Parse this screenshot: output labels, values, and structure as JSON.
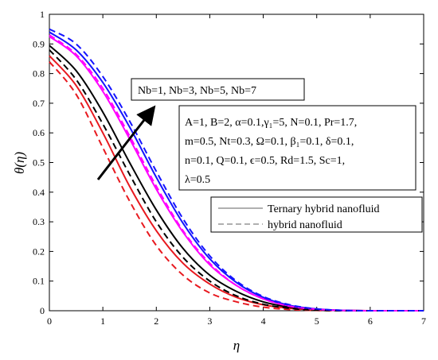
{
  "chart_data": {
    "type": "line",
    "xlabel": "η",
    "ylabel": "θ(η)",
    "xlim": [
      0,
      7
    ],
    "ylim": [
      0,
      1
    ],
    "xticks": [
      "0",
      "1",
      "2",
      "3",
      "4",
      "5",
      "6",
      "7"
    ],
    "yticks": [
      "0",
      "0.1",
      "0.2",
      "0.3",
      "0.4",
      "0.5",
      "0.6",
      "0.7",
      "0.8",
      "0.9",
      "1"
    ],
    "grid": false,
    "arrow_label": "Nb=1, Nb=3, Nb=5, Nb=7",
    "parameters": [
      "A=1, B=2, α=0.1,γ₁=5, N=0.1, Pr=1.7,",
      "m=0.5, Nt=0.3, Ω=0.1, β₁=0.1, δ=0.1,",
      "n=0.1, Q=0.1, ϵ=0.5, Rd=1.5, Sc=1,",
      "λ=0.5"
    ],
    "legend": {
      "placement": "middle-right",
      "entries": [
        {
          "label": "Ternary hybrid nanofluid",
          "style": "solid"
        },
        {
          "label": "hybrid nanofluid",
          "style": "dashed"
        }
      ]
    },
    "x": [
      0,
      0.5,
      1,
      1.5,
      2,
      2.5,
      3,
      3.5,
      4,
      4.5,
      5,
      5.5,
      6,
      6.5,
      7
    ],
    "series": [
      {
        "color": "#e8191f",
        "style": "solid",
        "values": [
          0.86,
          0.76,
          0.6,
          0.42,
          0.27,
          0.16,
          0.09,
          0.045,
          0.02,
          0.008,
          0.003,
          0.001,
          0,
          0,
          0
        ]
      },
      {
        "color": "#000000",
        "style": "solid",
        "values": [
          0.895,
          0.81,
          0.67,
          0.5,
          0.34,
          0.21,
          0.12,
          0.065,
          0.03,
          0.012,
          0.004,
          0.001,
          0,
          0,
          0
        ]
      },
      {
        "color": "#ff00ff",
        "style": "solid",
        "values": [
          0.925,
          0.86,
          0.74,
          0.58,
          0.41,
          0.265,
          0.155,
          0.085,
          0.04,
          0.016,
          0.005,
          0.001,
          0,
          0,
          0
        ]
      },
      {
        "color": "#1414ff",
        "style": "solid",
        "values": [
          0.94,
          0.88,
          0.77,
          0.62,
          0.45,
          0.295,
          0.175,
          0.095,
          0.045,
          0.018,
          0.006,
          0.001,
          0,
          0,
          0
        ]
      },
      {
        "color": "#e8191f",
        "style": "dashed",
        "values": [
          0.84,
          0.73,
          0.55,
          0.37,
          0.22,
          0.12,
          0.06,
          0.03,
          0.012,
          0.004,
          0.001,
          0,
          0,
          0,
          0
        ]
      },
      {
        "color": "#000000",
        "style": "dashed",
        "values": [
          0.88,
          0.78,
          0.63,
          0.46,
          0.3,
          0.18,
          0.1,
          0.05,
          0.022,
          0.008,
          0.002,
          0,
          0,
          0,
          0
        ]
      },
      {
        "color": "#ff00ff",
        "style": "dashed",
        "values": [
          0.93,
          0.865,
          0.75,
          0.59,
          0.42,
          0.27,
          0.16,
          0.085,
          0.04,
          0.015,
          0.005,
          0.001,
          0,
          0,
          0
        ]
      },
      {
        "color": "#1414ff",
        "style": "dashed",
        "values": [
          0.95,
          0.9,
          0.79,
          0.64,
          0.47,
          0.31,
          0.185,
          0.1,
          0.048,
          0.02,
          0.006,
          0.001,
          0,
          0,
          0
        ]
      }
    ]
  }
}
